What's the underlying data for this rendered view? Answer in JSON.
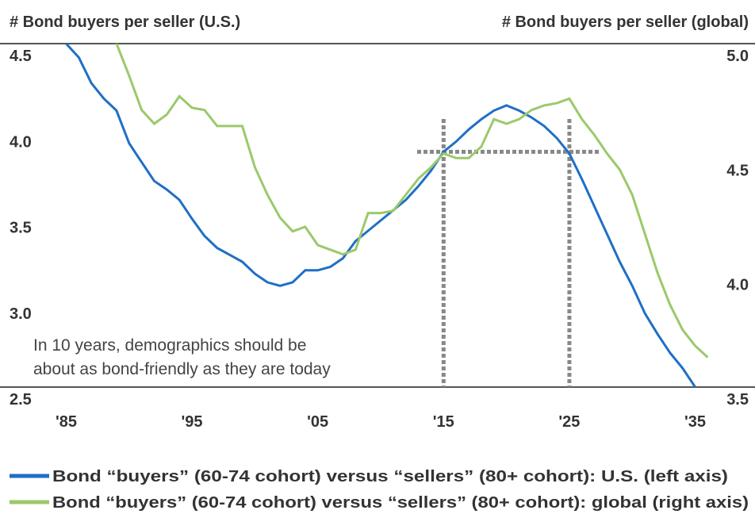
{
  "chart_data": {
    "type": "line",
    "y_title": "# Bond buyers per seller (U.S.)",
    "y2_title": "# Bond buyers per seller (global)",
    "annotation": [
      "In 10 years, demographics should be",
      "about as bond-friendly as they are today"
    ],
    "xlim": [
      1981,
      2039
    ],
    "xticks": [
      {
        "value": 1985,
        "label": "'85"
      },
      {
        "value": 1995,
        "label": "'95"
      },
      {
        "value": 2005,
        "label": "'05"
      },
      {
        "value": 2015,
        "label": "'15"
      },
      {
        "value": 2025,
        "label": "'25"
      },
      {
        "value": 2035,
        "label": "'35"
      }
    ],
    "ylim": [
      2.5,
      4.5
    ],
    "yticks": [
      {
        "value": 2.5,
        "label": "2.5"
      },
      {
        "value": 3.0,
        "label": "3.0"
      },
      {
        "value": 3.5,
        "label": "3.5"
      },
      {
        "value": 4.0,
        "label": "4.0"
      },
      {
        "value": 4.5,
        "label": "4.5"
      }
    ],
    "y2lim": [
      3.5,
      5.0
    ],
    "y2ticks": [
      {
        "value": 3.5,
        "label": "3.5"
      },
      {
        "value": 4.0,
        "label": "4.0"
      },
      {
        "value": 4.5,
        "label": "4.5"
      },
      {
        "value": 5.0,
        "label": "5.0"
      }
    ],
    "series": [
      {
        "name": "Bond “buyers” (60-74 cohort) versus “sellers” (80+ cohort): U.S. (left axis)",
        "color": "#1f6fc5",
        "x": [
          1985,
          1986,
          1987,
          1988,
          1989,
          1990,
          1991,
          1992,
          1993,
          1994,
          1995,
          1996,
          1997,
          1998,
          1999,
          2000,
          2001,
          2002,
          2003,
          2004,
          2005,
          2006,
          2007,
          2008,
          2009,
          2010,
          2011,
          2012,
          2013,
          2014,
          2015,
          2016,
          2017,
          2018,
          2019,
          2020,
          2021,
          2022,
          2023,
          2024,
          2025,
          2026,
          2027,
          2028,
          2029,
          2030,
          2031,
          2032,
          2033,
          2034,
          2035
        ],
        "values": [
          4.5,
          4.42,
          4.27,
          4.18,
          4.11,
          3.92,
          3.81,
          3.7,
          3.65,
          3.59,
          3.48,
          3.38,
          3.31,
          3.27,
          3.23,
          3.16,
          3.11,
          3.09,
          3.11,
          3.18,
          3.18,
          3.2,
          3.25,
          3.35,
          3.41,
          3.47,
          3.53,
          3.59,
          3.67,
          3.76,
          3.87,
          3.93,
          4.0,
          4.06,
          4.11,
          4.14,
          4.11,
          4.07,
          4.02,
          3.95,
          3.86,
          3.71,
          3.55,
          3.39,
          3.23,
          3.09,
          2.93,
          2.81,
          2.7,
          2.61,
          2.5
        ]
      },
      {
        "name": "Bond “buyers” (60-74 cohort) versus “sellers” (80+ cohort): global (right axis)",
        "color": "#9bc96a",
        "axis": "y2",
        "x": [
          1989,
          1990,
          1991,
          1992,
          1993,
          1994,
          1995,
          1996,
          1997,
          1998,
          1999,
          2000,
          2001,
          2002,
          2003,
          2004,
          2005,
          2006,
          2007,
          2008,
          2009,
          2010,
          2011,
          2012,
          2013,
          2014,
          2015,
          2016,
          2017,
          2018,
          2019,
          2020,
          2021,
          2022,
          2023,
          2024,
          2025,
          2026,
          2027,
          2028,
          2029,
          2030,
          2031,
          2032,
          2033,
          2034,
          2035,
          2036
        ],
        "values": [
          5.0,
          4.86,
          4.71,
          4.65,
          4.69,
          4.77,
          4.72,
          4.71,
          4.64,
          4.64,
          4.64,
          4.46,
          4.34,
          4.24,
          4.18,
          4.2,
          4.12,
          4.1,
          4.08,
          4.1,
          4.26,
          4.26,
          4.27,
          4.34,
          4.41,
          4.46,
          4.52,
          4.5,
          4.5,
          4.55,
          4.67,
          4.65,
          4.67,
          4.71,
          4.73,
          4.74,
          4.76,
          4.67,
          4.6,
          4.52,
          4.45,
          4.34,
          4.17,
          4.0,
          3.86,
          3.75,
          3.68,
          3.63
        ]
      }
    ]
  }
}
